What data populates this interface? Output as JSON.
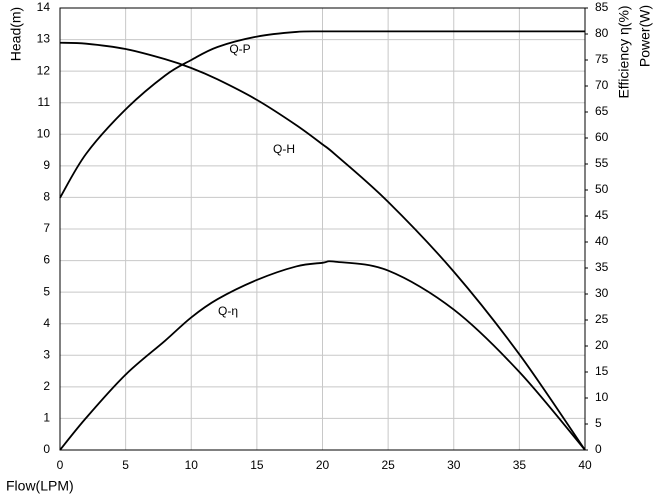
{
  "chart_data": {
    "type": "line",
    "xlabel": "Flow(LPM)",
    "ylabel": "Head(m)",
    "y2label": "Efficiency η(%)",
    "y3label": "Power(W)",
    "x": [
      0,
      2,
      5,
      8,
      10,
      12,
      15,
      18,
      20,
      21,
      25,
      30,
      35,
      40
    ],
    "series": [
      {
        "name": "Q-H",
        "color": "#000000",
        "axis": "y",
        "values": [
          12.9,
          12.87,
          12.7,
          12.38,
          12.1,
          11.74,
          11.09,
          10.29,
          9.68,
          9.35,
          7.86,
          5.65,
          3.03,
          0
        ]
      },
      {
        "name": "Q-P",
        "color": "#000000",
        "axis": "y2",
        "values": [
          48.5,
          57,
          65.5,
          72,
          75,
          77.5,
          79.5,
          80.4,
          80.5,
          80.5,
          80.5,
          80.5,
          80.5,
          80.5
        ]
      },
      {
        "name": "Q-η",
        "color": "#000000",
        "axis": "y2",
        "values": [
          0,
          6.2,
          14.5,
          21,
          25.5,
          29,
          32.7,
          35.3,
          36,
          36.2,
          34.5,
          27,
          15,
          0
        ]
      }
    ],
    "xlim": [
      0,
      40
    ],
    "xticks": [
      0,
      5,
      10,
      15,
      20,
      25,
      30,
      35,
      40
    ],
    "ylim": [
      0,
      14
    ],
    "yticks": [
      0,
      1,
      2,
      3,
      4,
      5,
      6,
      7,
      8,
      9,
      10,
      11,
      12,
      13,
      14
    ],
    "y2lim": [
      0,
      85
    ],
    "y2ticks": [
      0,
      5,
      10,
      15,
      20,
      25,
      30,
      35,
      40,
      45,
      50,
      55,
      60,
      65,
      70,
      75,
      80,
      85
    ],
    "grid": true
  }
}
